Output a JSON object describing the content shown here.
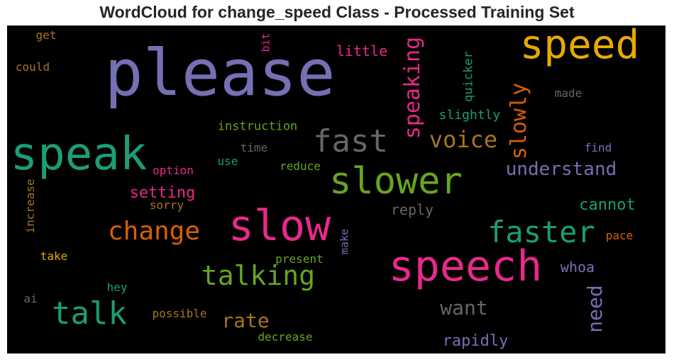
{
  "chart_data": {
    "type": "wordcloud",
    "title": "WordCloud for change_speed Class - Processed Training Set",
    "background": "#000000",
    "words": [
      {
        "text": "please",
        "color": "#7570b3"
      },
      {
        "text": "speed",
        "color": "#e6ab02"
      },
      {
        "text": "speak",
        "color": "#1b9e77"
      },
      {
        "text": "slow",
        "color": "#e7298a"
      },
      {
        "text": "speech",
        "color": "#e7298a"
      },
      {
        "text": "slower",
        "color": "#66a61e"
      },
      {
        "text": "fast",
        "color": "#666666"
      },
      {
        "text": "faster",
        "color": "#1b9e77"
      },
      {
        "text": "talk",
        "color": "#1b9e77"
      },
      {
        "text": "change",
        "color": "#d95f02"
      },
      {
        "text": "talking",
        "color": "#66a61e"
      },
      {
        "text": "speaking",
        "color": "#e7298a"
      },
      {
        "text": "slowly",
        "color": "#d95f02"
      },
      {
        "text": "voice",
        "color": "#a6761d"
      },
      {
        "text": "understand",
        "color": "#7570b3"
      },
      {
        "text": "want",
        "color": "#666666"
      },
      {
        "text": "rate",
        "color": "#a6761d"
      },
      {
        "text": "need",
        "color": "#7570b3"
      },
      {
        "text": "little",
        "color": "#e7298a"
      },
      {
        "text": "setting",
        "color": "#e7298a"
      },
      {
        "text": "cannot",
        "color": "#1b9e77"
      },
      {
        "text": "reply",
        "color": "#666666"
      },
      {
        "text": "rapidly",
        "color": "#7570b3"
      },
      {
        "text": "whoa",
        "color": "#7570b3"
      },
      {
        "text": "slightly",
        "color": "#1b9e77"
      },
      {
        "text": "quicker",
        "color": "#1b9e77"
      },
      {
        "text": "instruction",
        "color": "#66a61e"
      },
      {
        "text": "made",
        "color": "#666666"
      },
      {
        "text": "find",
        "color": "#7570b3"
      },
      {
        "text": "time",
        "color": "#666666"
      },
      {
        "text": "reduce",
        "color": "#66a61e"
      },
      {
        "text": "use",
        "color": "#1b9e77"
      },
      {
        "text": "option",
        "color": "#e7298a"
      },
      {
        "text": "sorry",
        "color": "#a6761d"
      },
      {
        "text": "increase",
        "color": "#a6761d"
      },
      {
        "text": "present",
        "color": "#66a61e"
      },
      {
        "text": "make",
        "color": "#7570b3"
      },
      {
        "text": "pace",
        "color": "#d95f02"
      },
      {
        "text": "take",
        "color": "#e6ab02"
      },
      {
        "text": "hey",
        "color": "#1b9e77"
      },
      {
        "text": "ai",
        "color": "#666666"
      },
      {
        "text": "possible",
        "color": "#a6761d"
      },
      {
        "text": "decrease",
        "color": "#66a61e"
      },
      {
        "text": "get",
        "color": "#a6761d"
      },
      {
        "text": "could",
        "color": "#a6761d"
      },
      {
        "text": "bit",
        "color": "#e7298a"
      }
    ]
  }
}
